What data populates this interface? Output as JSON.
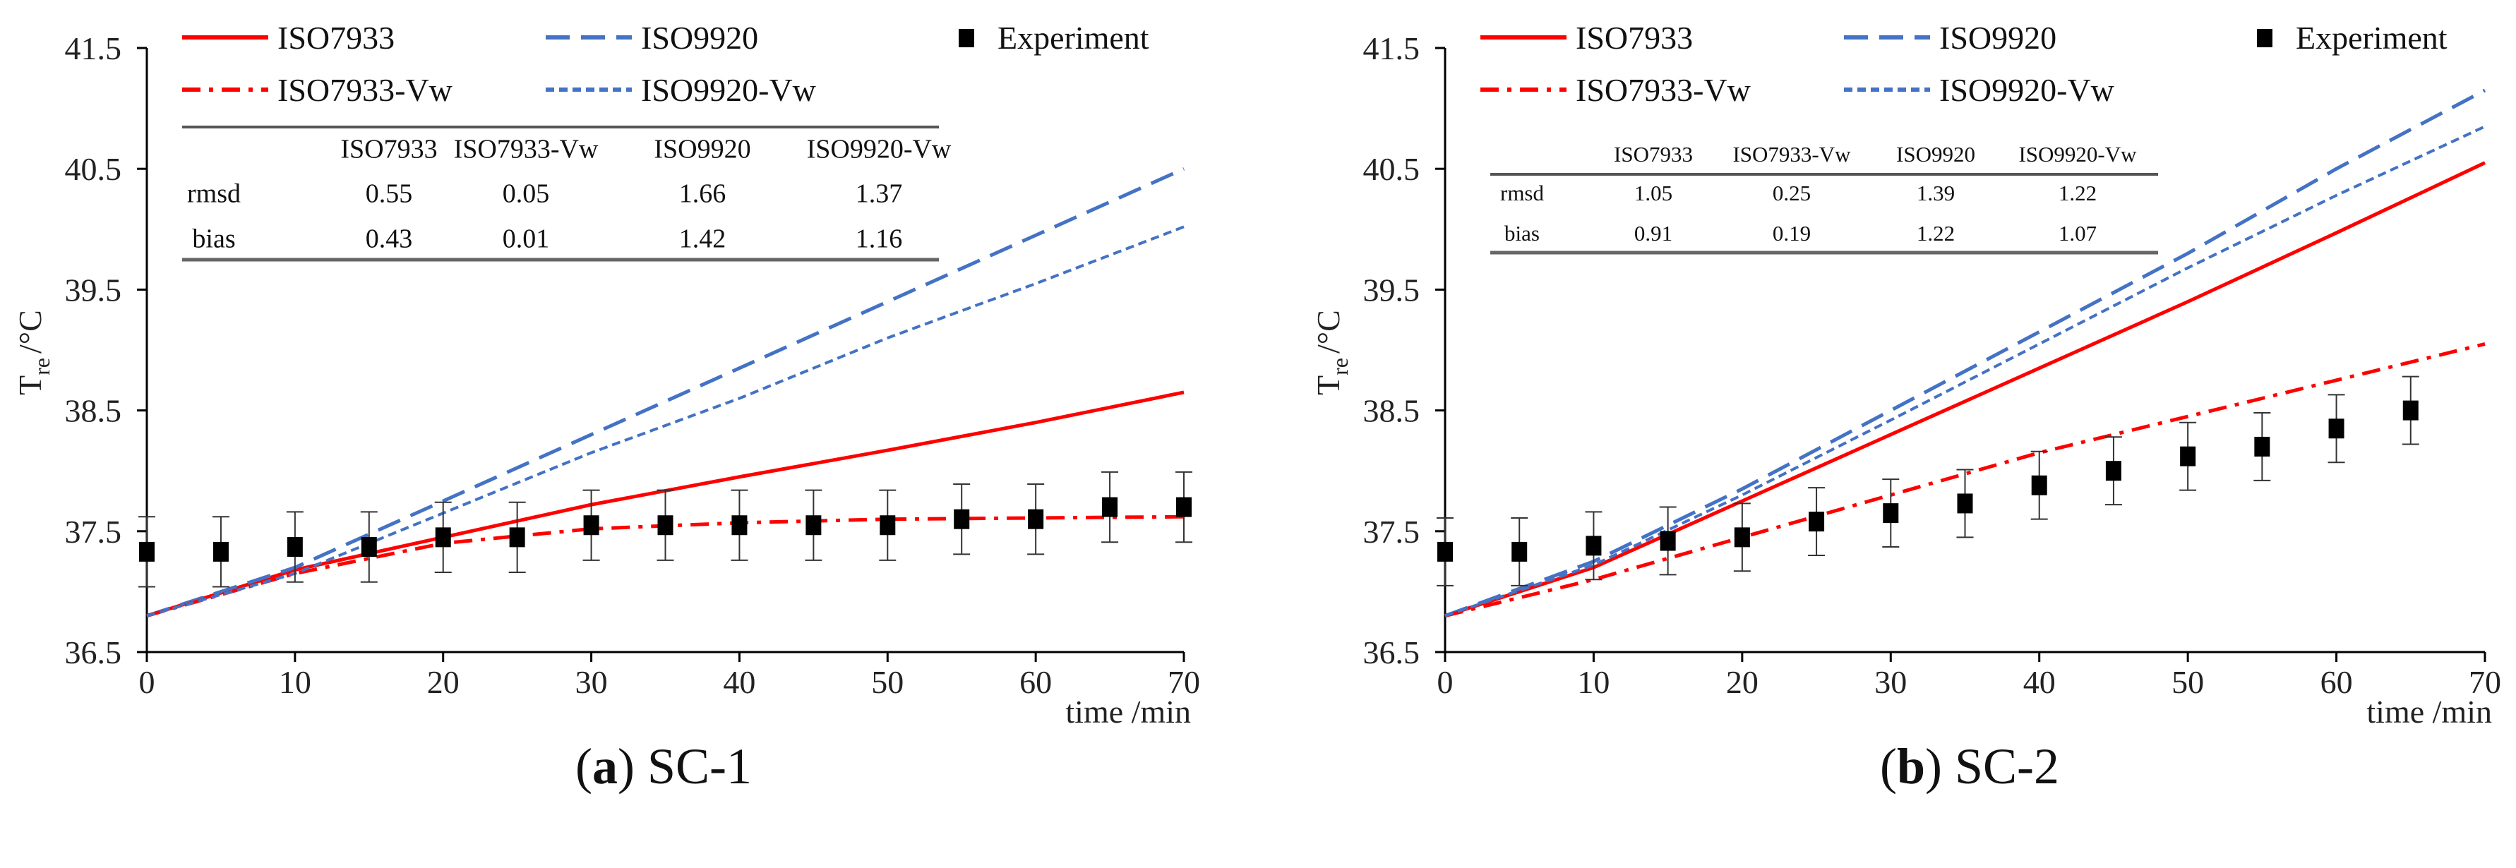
{
  "colors": {
    "red": "#ff0000",
    "blue": "#4472c4",
    "marker": "#000000"
  },
  "chart_data": [
    {
      "type": "line",
      "title": "SC-1",
      "caption_letter": "a",
      "xlabel": "time /min",
      "ylabel": "T",
      "ylabel_sub": "re",
      "ylabel_unit": "/°C",
      "xlim": [
        0,
        70
      ],
      "ylim": [
        36.5,
        41.5
      ],
      "xticks": [
        0,
        10,
        20,
        30,
        40,
        50,
        60,
        70
      ],
      "yticks": [
        "36.5",
        "37.5",
        "38.5",
        "39.5",
        "40.5",
        "41.5"
      ],
      "legend": [
        "ISO7933",
        "ISO9920",
        "Experiment",
        "ISO7933-Vw",
        "ISO9920-Vw"
      ],
      "x": [
        0,
        10,
        20,
        30,
        40,
        50,
        60,
        70
      ],
      "series": [
        {
          "name": "ISO7933",
          "style": "solid",
          "color": "#ff0000",
          "values": [
            36.8,
            37.18,
            37.45,
            37.72,
            37.95,
            38.17,
            38.4,
            38.65
          ]
        },
        {
          "name": "ISO9920",
          "style": "dash",
          "color": "#4472c4",
          "values": [
            36.8,
            37.2,
            37.75,
            38.3,
            38.85,
            39.4,
            39.95,
            40.5
          ]
        },
        {
          "name": "ISO7933-Vw",
          "style": "dashdot",
          "color": "#ff0000",
          "values": [
            36.8,
            37.15,
            37.4,
            37.52,
            37.57,
            37.6,
            37.61,
            37.62
          ]
        },
        {
          "name": "ISO9920-Vw",
          "style": "dot",
          "color": "#4472c4",
          "values": [
            36.8,
            37.15,
            37.65,
            38.15,
            38.6,
            39.1,
            39.55,
            40.02
          ]
        }
      ],
      "experiment": {
        "x": [
          0,
          5,
          10,
          15,
          20,
          25,
          30,
          35,
          40,
          45,
          50,
          55,
          60,
          65,
          70
        ],
        "y": [
          37.33,
          37.33,
          37.37,
          37.37,
          37.45,
          37.45,
          37.55,
          37.55,
          37.55,
          37.55,
          37.55,
          37.6,
          37.6,
          37.7,
          37.7
        ],
        "err": 0.29
      },
      "table": {
        "columns": [
          "",
          "ISO7933",
          "ISO7933-Vw",
          "ISO9920",
          "ISO9920-Vw"
        ],
        "rows": [
          [
            "rmsd",
            "0.55",
            "0.05",
            "1.66",
            "1.37"
          ],
          [
            "bias",
            "0.43",
            "0.01",
            "1.42",
            "1.16"
          ]
        ]
      }
    },
    {
      "type": "line",
      "title": "SC-2",
      "caption_letter": "b",
      "xlabel": "time /min",
      "ylabel": "T",
      "ylabel_sub": "re",
      "ylabel_unit": "/°C",
      "xlim": [
        0,
        70
      ],
      "ylim": [
        36.5,
        41.5
      ],
      "xticks": [
        0,
        10,
        20,
        30,
        40,
        50,
        60,
        70
      ],
      "yticks": [
        "36.5",
        "37.5",
        "38.5",
        "39.5",
        "40.5",
        "41.5"
      ],
      "legend": [
        "ISO7933",
        "ISO9920",
        "Experiment",
        "ISO7933-Vw",
        "ISO9920-Vw"
      ],
      "x": [
        0,
        10,
        20,
        30,
        40,
        50,
        60,
        70
      ],
      "series": [
        {
          "name": "ISO7933",
          "style": "solid",
          "color": "#ff0000",
          "values": [
            36.8,
            37.2,
            37.75,
            38.3,
            38.85,
            39.4,
            39.97,
            40.55
          ]
        },
        {
          "name": "ISO9920",
          "style": "dash",
          "color": "#4472c4",
          "values": [
            36.8,
            37.25,
            37.85,
            38.5,
            39.15,
            39.8,
            40.5,
            41.15
          ]
        },
        {
          "name": "ISO7933-Vw",
          "style": "dashdot",
          "color": "#ff0000",
          "values": [
            36.8,
            37.1,
            37.45,
            37.8,
            38.15,
            38.45,
            38.75,
            39.05
          ]
        },
        {
          "name": "ISO9920-Vw",
          "style": "dot",
          "color": "#4472c4",
          "values": [
            36.8,
            37.22,
            37.8,
            38.42,
            39.05,
            39.68,
            40.28,
            40.85
          ]
        }
      ],
      "experiment": {
        "x": [
          0,
          5,
          10,
          15,
          20,
          25,
          30,
          35,
          40,
          45,
          50,
          55,
          60,
          65
        ],
        "y": [
          37.33,
          37.33,
          37.38,
          37.42,
          37.45,
          37.58,
          37.65,
          37.73,
          37.88,
          38.0,
          38.12,
          38.2,
          38.35,
          38.5
        ],
        "err": 0.28
      },
      "table": {
        "columns": [
          "",
          "ISO7933",
          "ISO7933-Vw",
          "ISO9920",
          "ISO9920-Vw"
        ],
        "rows": [
          [
            "rmsd",
            "1.05",
            "0.25",
            "1.39",
            "1.22"
          ],
          [
            "bias",
            "0.91",
            "0.19",
            "1.22",
            "1.07"
          ]
        ]
      }
    }
  ]
}
